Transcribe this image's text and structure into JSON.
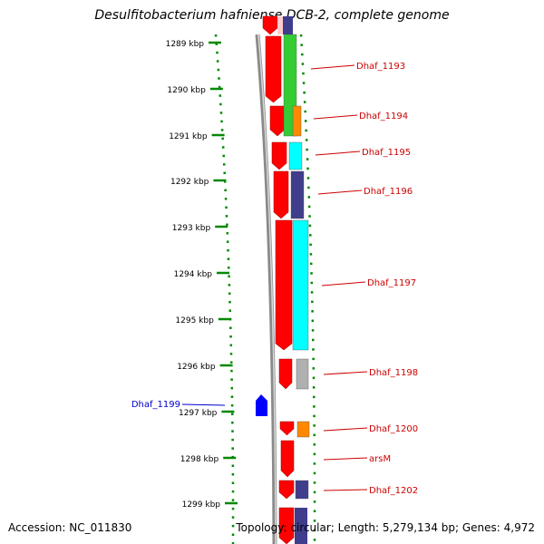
{
  "title": "Desulfitobacterium hafniense DCB-2, complete genome",
  "footer": {
    "accession": "Accession: NC_011830",
    "summary": "Topology: circular; Length: 5,279,134 bp; Genes: 4,972"
  },
  "colors": {
    "strand_red": "#ff0000",
    "label_red": "#cc0000",
    "label_blue": "#0000cc",
    "green": "#33cc33",
    "orange": "#ff8800",
    "cyan": "#00ffff",
    "navy": "#3f3d8c",
    "gray": "#b0b0b0",
    "blue_gene": "#0000ff",
    "tick_green": "#008800"
  },
  "ruler": [
    {
      "label": "1289 kbp"
    },
    {
      "label": "1290 kbp"
    },
    {
      "label": "1291 kbp"
    },
    {
      "label": "1292 kbp"
    },
    {
      "label": "1293 kbp"
    },
    {
      "label": "1294 kbp"
    },
    {
      "label": "1295 kbp"
    },
    {
      "label": "1296 kbp"
    },
    {
      "label": "1297 kbp"
    },
    {
      "label": "1298 kbp"
    },
    {
      "label": "1299 kbp"
    }
  ],
  "genes": [
    {
      "label": "Dhaf_1193",
      "color": "green"
    },
    {
      "label": "Dhaf_1194",
      "color": "orange"
    },
    {
      "label": "Dhaf_1195",
      "color": "cyan"
    },
    {
      "label": "Dhaf_1196",
      "color": "navy"
    },
    {
      "label": "Dhaf_1197",
      "color": "cyan"
    },
    {
      "label": "Dhaf_1198",
      "color": "gray"
    },
    {
      "label": "Dhaf_1199",
      "color": "blue_gene"
    },
    {
      "label": "Dhaf_1200",
      "color": "orange"
    },
    {
      "label": "arsM",
      "color": "navy"
    },
    {
      "label": "Dhaf_1202",
      "color": "navy"
    }
  ]
}
